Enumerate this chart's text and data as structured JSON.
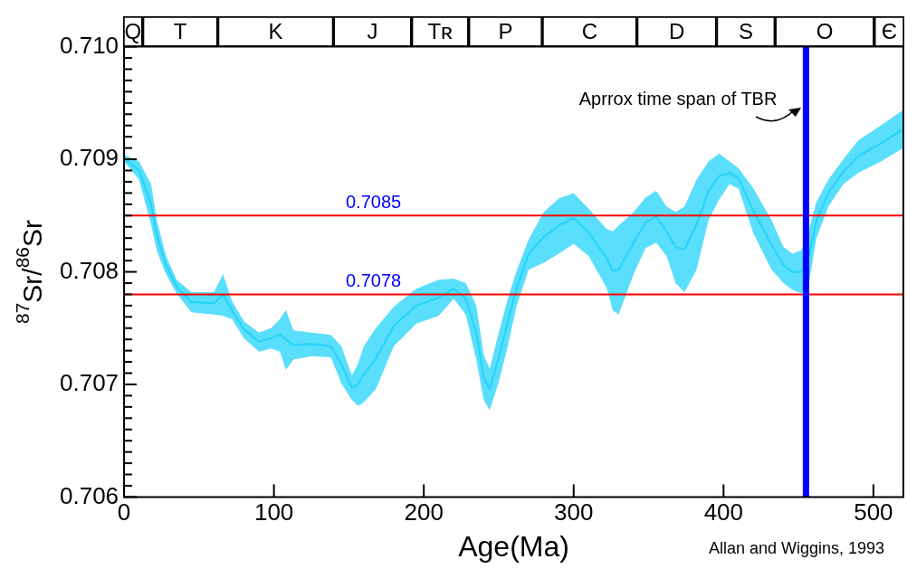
{
  "chart_data": [
    {
      "type": "bar",
      "orientation": "horizontal",
      "stacked": true,
      "categories": [
        null
      ],
      "xlim": [
        0,
        520
      ],
      "tick_labels": false,
      "series": [
        {
          "color": "#ffffff",
          "values": [
            13
          ],
          "value_labels": [
            "Q"
          ]
        },
        {
          "color": "#ffffff",
          "values": [
            50
          ],
          "value_labels": [
            "T"
          ]
        },
        {
          "color": "#ffffff",
          "values": [
            77
          ],
          "value_labels": [
            "K"
          ]
        },
        {
          "color": "#ffffff",
          "values": [
            52
          ],
          "value_labels": [
            "J"
          ]
        },
        {
          "color": "#ffffff",
          "values": [
            38
          ],
          "value_labels": [
            "Tʀ"
          ]
        },
        {
          "color": "#ffffff",
          "values": [
            49
          ],
          "value_labels": [
            "P"
          ]
        },
        {
          "color": "#ffffff",
          "values": [
            63
          ],
          "value_labels": [
            "C"
          ]
        },
        {
          "color": "#ffffff",
          "values": [
            53
          ],
          "value_labels": [
            "D"
          ]
        },
        {
          "color": "#ffffff",
          "values": [
            39
          ],
          "value_labels": [
            "S"
          ]
        },
        {
          "color": "#ffffff",
          "values": [
            66
          ],
          "value_labels": [
            "O"
          ]
        },
        {
          "color": "#ffffff",
          "values": [
            20
          ],
          "value_labels": [
            "Є"
          ]
        }
      ]
    },
    {
      "type": "line",
      "xlabel": "Age(Ma)",
      "ylabel": "$^{87}$Sr/$^{86}$Sr",
      "xlim": [
        0,
        520
      ],
      "xticks": [
        0,
        100,
        200,
        300,
        400,
        500
      ],
      "ylim": [
        0.706,
        0.71
      ],
      "yticks": [
        {
          "value": 0.706,
          "label": "0.706"
        },
        {
          "value": 0.7061,
          "label": null
        },
        {
          "value": 0.7062,
          "label": null
        },
        {
          "value": 0.7063,
          "label": null
        },
        {
          "value": 0.7064,
          "label": null
        },
        {
          "value": 0.7065,
          "label": null
        },
        {
          "value": 0.7066,
          "label": null
        },
        {
          "value": 0.7067,
          "label": null
        },
        {
          "value": 0.7068,
          "label": null
        },
        {
          "value": 0.7069,
          "label": null
        },
        {
          "value": 0.707,
          "label": "0.707"
        },
        {
          "value": 0.7071,
          "label": null
        },
        {
          "value": 0.7072,
          "label": null
        },
        {
          "value": 0.7073,
          "label": null
        },
        {
          "value": 0.7074,
          "label": null
        },
        {
          "value": 0.7075,
          "label": null
        },
        {
          "value": 0.7076,
          "label": null
        },
        {
          "value": 0.7077,
          "label": null
        },
        {
          "value": 0.7078,
          "label": null
        },
        {
          "value": 0.7079,
          "label": null
        },
        {
          "value": 0.708,
          "label": "0.708"
        },
        {
          "value": 0.7081,
          "label": null
        },
        {
          "value": 0.7082,
          "label": null
        },
        {
          "value": 0.7083,
          "label": null
        },
        {
          "value": 0.7084,
          "label": null
        },
        {
          "value": 0.7085,
          "label": null
        },
        {
          "value": 0.7086,
          "label": null
        },
        {
          "value": 0.7087,
          "label": null
        },
        {
          "value": 0.7088,
          "label": null
        },
        {
          "value": 0.7089,
          "label": null
        },
        {
          "value": 0.709,
          "label": "0.709"
        },
        {
          "value": 0.7091,
          "label": null
        },
        {
          "value": 0.7092,
          "label": null
        },
        {
          "value": 0.7093,
          "label": null
        },
        {
          "value": 0.7094,
          "label": null
        },
        {
          "value": 0.7095,
          "label": null
        },
        {
          "value": 0.7096,
          "label": null
        },
        {
          "value": 0.7097,
          "label": null
        },
        {
          "value": 0.7098,
          "label": null
        },
        {
          "value": 0.7099,
          "label": null
        },
        {
          "value": 0.71,
          "label": "0.710"
        }
      ],
      "x": [
        0,
        10,
        18,
        22,
        28,
        35,
        45,
        60,
        66,
        72,
        80,
        90,
        98,
        104,
        108,
        113,
        125,
        138,
        145,
        152,
        156,
        160,
        168,
        180,
        195,
        210,
        220,
        228,
        235,
        240,
        244,
        250,
        256,
        262,
        270,
        280,
        290,
        300,
        310,
        322,
        326,
        330,
        340,
        348,
        355,
        362,
        368,
        374,
        382,
        390,
        397,
        404,
        410,
        420,
        432,
        440,
        446,
        452,
        457,
        462,
        470,
        480,
        490,
        505,
        520
      ],
      "series": [
        {
          "color": "#22d3fb",
          "values": [
            0.70901,
            0.7089,
            0.7086,
            0.70832,
            0.70806,
            0.70787,
            0.70773,
            0.70772,
            0.7078,
            0.70766,
            0.70749,
            0.70738,
            0.70741,
            0.70744,
            0.7074,
            0.70735,
            0.70736,
            0.70734,
            0.70718,
            0.70697,
            0.707,
            0.70709,
            0.70723,
            0.70752,
            0.7077,
            0.70777,
            0.70785,
            0.70776,
            0.70746,
            0.70706,
            0.70696,
            0.70724,
            0.70755,
            0.70786,
            0.70816,
            0.70831,
            0.70841,
            0.70848,
            0.70835,
            0.70812,
            0.70801,
            0.70802,
            0.70826,
            0.70844,
            0.70849,
            0.70836,
            0.70822,
            0.7082,
            0.70842,
            0.70872,
            0.70885,
            0.70888,
            0.70883,
            0.70854,
            0.70824,
            0.70806,
            0.708,
            0.708,
            0.70814,
            0.70846,
            0.7087,
            0.70889,
            0.70903,
            0.70914,
            0.70927
          ],
          "lower": [
            0.70898,
            0.70882,
            0.70842,
            0.70818,
            0.70798,
            0.70781,
            0.70764,
            0.70762,
            0.70761,
            0.70758,
            0.70741,
            0.70729,
            0.70732,
            0.70729,
            0.70713,
            0.70722,
            0.70725,
            0.70724,
            0.70701,
            0.70686,
            0.70681,
            0.70684,
            0.70696,
            0.70734,
            0.70754,
            0.70761,
            0.70776,
            0.70762,
            0.70722,
            0.70686,
            0.70677,
            0.70702,
            0.70734,
            0.7077,
            0.70802,
            0.70808,
            0.70816,
            0.70825,
            0.70814,
            0.70786,
            0.70766,
            0.70762,
            0.70798,
            0.70821,
            0.70826,
            0.70814,
            0.7079,
            0.70782,
            0.70802,
            0.70846,
            0.70864,
            0.70878,
            0.70874,
            0.70834,
            0.70802,
            0.7079,
            0.70784,
            0.70781,
            0.7079,
            0.7083,
            0.70858,
            0.70878,
            0.70888,
            0.70898,
            0.7091
          ],
          "upper": [
            0.70904,
            0.70898,
            0.70878,
            0.70845,
            0.70814,
            0.70793,
            0.70782,
            0.70782,
            0.70798,
            0.70774,
            0.70756,
            0.70746,
            0.7075,
            0.70758,
            0.70766,
            0.70748,
            0.70746,
            0.70744,
            0.70734,
            0.70708,
            0.70718,
            0.70734,
            0.7075,
            0.70769,
            0.70785,
            0.70793,
            0.70794,
            0.7079,
            0.7077,
            0.70726,
            0.70714,
            0.70746,
            0.70776,
            0.70801,
            0.70829,
            0.70853,
            0.70865,
            0.7087,
            0.70856,
            0.70838,
            0.70836,
            0.70841,
            0.70853,
            0.70866,
            0.70872,
            0.70858,
            0.70853,
            0.70858,
            0.70882,
            0.70898,
            0.70905,
            0.70898,
            0.70892,
            0.70874,
            0.70846,
            0.70822,
            0.70816,
            0.70819,
            0.70838,
            0.70862,
            0.70882,
            0.709,
            0.70917,
            0.7093,
            0.70944
          ]
        }
      ],
      "ref_lines": [
        {
          "axis": "y",
          "value": 0.7085,
          "label": "0.7085",
          "color": "#ff0000"
        },
        {
          "axis": "y",
          "value": 0.7078,
          "label": "0.7078",
          "color": "#ff0000"
        },
        {
          "axis": "x",
          "value": 455,
          "color": "#0000ff"
        }
      ],
      "annotations": [
        {
          "text": "Aprrox time span of TBR",
          "x": 455,
          "y": 0.70946
        },
        "Allan and Wiggins, 1993"
      ],
      "legend": false
    }
  ]
}
